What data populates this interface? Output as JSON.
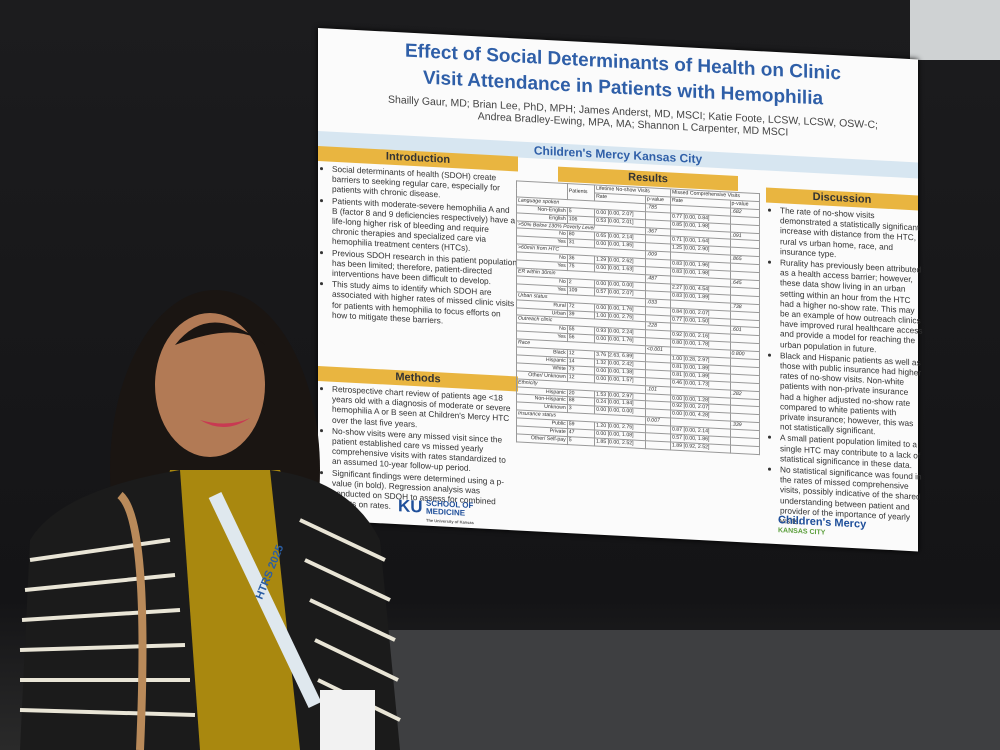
{
  "poster": {
    "title_line1": "Effect of Social Determinants of Health on Clinic",
    "title_line2": "Visit Attendance in Patients with Hemophilia",
    "authors": "Shailly Gaur, MD; Brian Lee, PhD, MPH; James Anderst, MD, MSCI; Katie Foote, LCSW, LCSW, OSW-C; Andrea Bradley-Ewing, MPA, MA; Shannon L Carpenter, MD MSCI",
    "affiliation": "Children's Mercy Kansas City",
    "introduction": {
      "heading": "Introduction",
      "bullets": [
        "Social determinants of health (SDOH) create barriers to seeking regular care, especially for patients with chronic disease.",
        "Patients with moderate-severe hemophilia A and B (factor 8 and 9 deficiencies respectively) have a life-long higher risk of bleeding and require chronic therapies and specialized care via hemophilia treatment centers (HTCs).",
        "Previous SDOH research in this patient population has been limited; therefore, patient-directed interventions have been difficult to develop.",
        "This study aims to identify which SDOH are associated with higher rates of missed clinic visits for patients with hemophilia to focus efforts on how to mitigate these barriers."
      ]
    },
    "methods": {
      "heading": "Methods",
      "bullets": [
        "Retrospective chart review of patients age <18 years old with a diagnosis of moderate or severe hemophilia A or B seen at Children's Mercy HTC over the last five years.",
        "No-show visits were any missed visit since the patient established care vs missed yearly comprehensive visits with rates standardized to an assumed 10-year follow-up period.",
        "Significant findings were determined using a p-value (in bold). Regression analysis was conducted on SDOH to assess for combined effects on rates."
      ]
    },
    "results": {
      "heading": "Results",
      "header": {
        "patients": "Patients",
        "noshow": "Lifetime No-show Visits",
        "missed": "Missed Comprehensive Visits",
        "rate1": "Rate",
        "p1": "p-value",
        "rate2": "Rate",
        "p2": "p-value"
      },
      "groups": [
        {
          "label": "Language spoken",
          "p1": ".785",
          "p2": ".682",
          "rows": [
            [
              "Non-English",
              "5",
              "0.00 [0.00, 2.07]",
              "0.77 [0.00, 0.84]"
            ],
            [
              "English",
              "106",
              "0.53 [0.00, 2.01]",
              "0.85 [0.00, 1.98]"
            ]
          ]
        },
        {
          "label": ">50% Below 130% Poverty Level",
          "p1": ".367",
          "p2": ".091",
          "rows": [
            [
              "No",
              "80",
              "0.65 [0.00, 2.14]",
              "0.71 [0.00, 1.64]"
            ],
            [
              "Yes",
              "31",
              "0.00 [0.00, 1.85]",
              "1.25 [0.00, 2.90]"
            ]
          ]
        },
        {
          "label": ">60min from HTC",
          "p1": ".009",
          "p2": ".865",
          "rows": [
            [
              "No",
              "36",
              "1.29 [0.00, 2.62]",
              "0.83 [0.00, 1.96]"
            ],
            [
              "Yes",
              "75",
              "0.00 [0.00, 1.63]",
              "0.83 [0.00, 1.98]"
            ]
          ]
        },
        {
          "label": "ER within 30min",
          "p1": ".487",
          "p2": ".645",
          "rows": [
            [
              "No",
              "2",
              "0.00 [0.00, 0.00]",
              "2.27 [0.00, 4.54]"
            ],
            [
              "Yes",
              "109",
              "0.57 [0.00, 2.07]",
              "0.83 [0.00, 1.89]"
            ]
          ]
        },
        {
          "label": "Urban status",
          "p1": ".033",
          "p2": ".738",
          "rows": [
            [
              "Rural",
              "72",
              "0.00 [0.00, 1.76]",
              "0.84 [0.00, 2.07]"
            ],
            [
              "Urban",
              "39",
              "1.00 [0.00, 2.75]",
              "0.77 [0.00, 1.50]"
            ]
          ]
        },
        {
          "label": "Outreach clinic",
          "p1": ".228",
          "p2": ".601",
          "rows": [
            [
              "No",
              "55",
              "0.93 [0.00, 2.24]",
              "0.92 [0.00, 2.16]"
            ],
            [
              "Yes",
              "56",
              "0.00 [0.00, 1.76]",
              "0.80 [0.00, 1.78]"
            ]
          ]
        },
        {
          "label": "Race",
          "p1": "<0.001",
          "p2": "0.800",
          "rows": [
            [
              "Black",
              "12",
              "3.76 [2.63, 6.89]",
              "1.00 [0.28, 2.97]"
            ],
            [
              "Hispanic",
              "14",
              "1.32 [0.00, 2.42]",
              "0.81 [0.00, 1.89]"
            ],
            [
              "White",
              "73",
              "0.00 [0.00, 1.38]",
              "0.81 [0.00, 1.89]"
            ],
            [
              "Other/ Unknown",
              "12",
              "0.00 [0.00, 1.57]",
              "0.46 [0.00, 1.73]"
            ]
          ]
        },
        {
          "label": "Ethnicity",
          "p1": ".101",
          "p2": ".282",
          "rows": [
            [
              "Hispanic",
              "20",
              "1.53 [0.00, 2.97]",
              "0.00 [0.00, 1.28]"
            ],
            [
              "Non-Hispanic",
              "88",
              "0.24 [0.00, 1.84]",
              "0.92 [0.00, 2.07]"
            ],
            [
              "Unknown",
              "3",
              "0.00 [0.00, 0.00]",
              "0.00 [0.00, 4.28]"
            ]
          ]
        },
        {
          "label": "Insurance status",
          "p1": "0.007",
          "p2": ".339",
          "rows": [
            [
              "Public",
              "59",
              "1.20 [0.00, 2.75]",
              "0.87 [0.00, 2.14]"
            ],
            [
              "Private",
              "47",
              "0.00 [0.00, 1.08]",
              "0.57 [0.00, 1.86]"
            ],
            [
              "Other/ Self-pay",
              "5",
              "1.85 [0.00, 2.52]",
              "1.89 [0.92, 2.52]"
            ]
          ]
        }
      ]
    },
    "discussion": {
      "heading": "Discussion",
      "bullets": [
        "The rate of no-show visits demonstrated a statistically significant increase with distance from the HTC, rural vs urban home, race, and insurance type.",
        "Rurality has previously been attributed as a health access barrier; however, these data show living in an urban setting within an hour from the HTC had a higher no-show rate. This may be an example of how outreach clinics have improved rural healthcare access and provide a model for reaching the urban population in future.",
        "Black and Hispanic patients as well as those with public insurance had higher rates of no-show visits. Non-white patients with non-private insurance had a higher adjusted no-show rate compared to white patients with private insurance; however, this was not statistically significant.",
        "A small patient population limited to a single HTC may contribute to a lack of statistical significance in these data.",
        "No statistical significance was found in the rates of missed comprehensive visits, possibly indicative of the shared understanding between patient and provider of the importance of yearly visits."
      ]
    },
    "logos": {
      "ku": "KU",
      "ku_name": "SCHOOL OF MEDICINE",
      "ku_sub": "The University of Kansas",
      "cm": "Children's Mercy",
      "cm_sub": "KANSAS CITY"
    }
  },
  "badge": {
    "lanyard": "HTRS 2025"
  }
}
